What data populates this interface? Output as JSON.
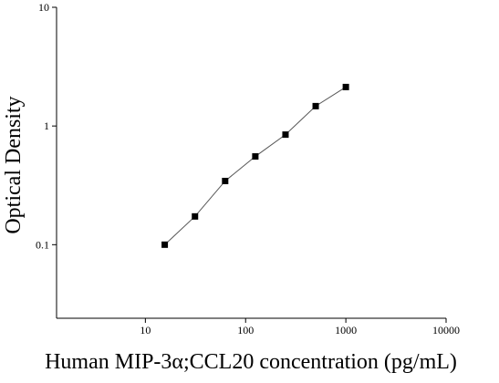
{
  "chart_data": {
    "type": "scatter",
    "x_label": "Human MIP-3α;CCL20 concentration (pg/mL)",
    "y_label": "Optical Density",
    "x": [
      15.6,
      31.25,
      62.5,
      125,
      250,
      500,
      1000
    ],
    "series": [
      {
        "color": "#000000",
        "values": [
          0.1,
          0.173,
          0.344,
          0.554,
          0.846,
          1.47,
          2.13
        ]
      }
    ],
    "fit_line": true,
    "fit_color": "#555555",
    "xlog": true,
    "ylog": true,
    "xlim": [
      1.3,
      10000
    ],
    "ylim": [
      0.024,
      10
    ],
    "xticks": [
      10,
      100,
      1000,
      10000
    ],
    "yticks": [
      0.1,
      1,
      10
    ]
  }
}
